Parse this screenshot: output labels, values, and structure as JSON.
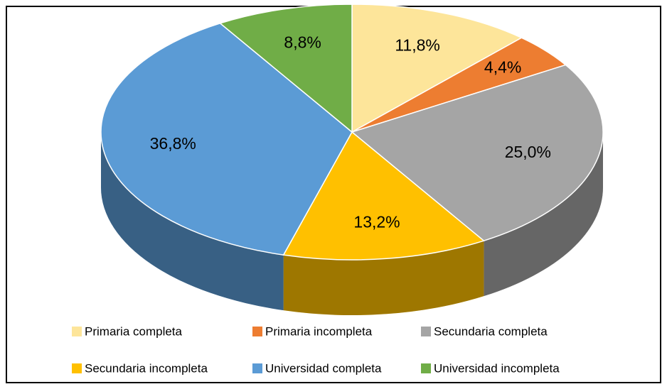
{
  "chart_data": {
    "type": "pie",
    "categories": [
      "Primaria completa",
      "Primaria incompleta",
      "Secundaria completa",
      "Secundaria incompleta",
      "Universidad completa",
      "Universidad incompleta"
    ],
    "values": [
      11.8,
      4.4,
      25.0,
      13.2,
      36.8,
      8.8
    ],
    "value_labels": [
      "11,8%",
      "4,4%",
      "25,0%",
      "13,2%",
      "36,8%",
      "8,8%"
    ],
    "colors": [
      "#fde59a",
      "#ed7d31",
      "#a5a5a5",
      "#ffc000",
      "#5b9bd5",
      "#70ad47"
    ],
    "legend": "bottom"
  }
}
